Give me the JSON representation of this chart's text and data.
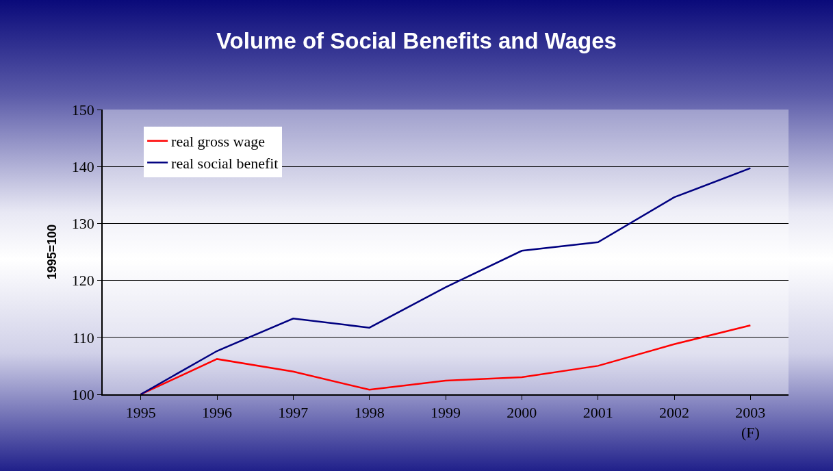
{
  "chart_data": {
    "type": "line",
    "title": "Volume of Social Benefits and Wages",
    "ylabel": "1995=100",
    "categories": [
      "1995",
      "1996",
      "1997",
      "1998",
      "1999",
      "2000",
      "2001",
      "2002",
      "2003\n(F)"
    ],
    "series": [
      {
        "name": "real gross wage",
        "color": "#ff0000",
        "values": [
          100,
          106.2,
          104.0,
          100.8,
          102.4,
          103.0,
          105.0,
          108.8,
          112.1
        ]
      },
      {
        "name": "real social benefit",
        "color": "#000080",
        "values": [
          100,
          107.6,
          113.3,
          111.7,
          118.8,
          125.2,
          126.7,
          134.6,
          139.7
        ]
      }
    ],
    "ylim": [
      100,
      150
    ],
    "yticks": [
      100,
      110,
      120,
      130,
      140,
      150
    ],
    "grid": "y",
    "legend": "top left",
    "marker": "none",
    "line_style": "solid"
  }
}
